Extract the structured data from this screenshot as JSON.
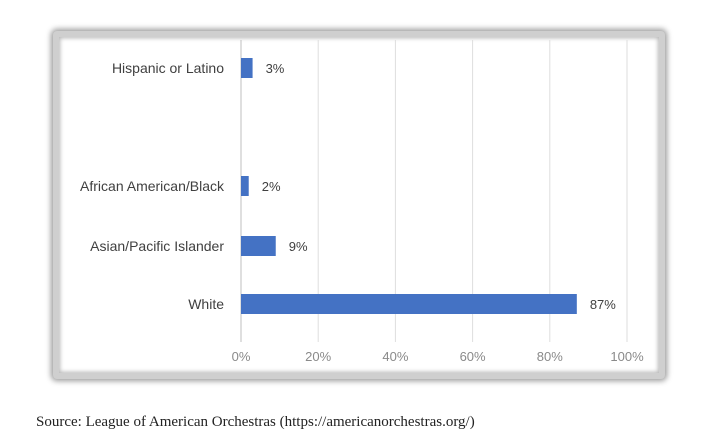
{
  "chart_data": {
    "type": "bar",
    "orientation": "horizontal",
    "categories": [
      "Hispanic or Latino",
      "African American/Black",
      "Asian/Pacific Islander",
      "White"
    ],
    "values": [
      3,
      2,
      9,
      87
    ],
    "value_labels": [
      "3%",
      "2%",
      "9%",
      "87%"
    ],
    "xlim": [
      0,
      100
    ],
    "x_ticks": [
      "0%",
      "20%",
      "40%",
      "60%",
      "80%",
      "100%"
    ],
    "grid": "vertical",
    "bar_color": "#4472c4"
  },
  "source_text": "Source: League of American Orchestras (https://americanorchestras.org/)"
}
